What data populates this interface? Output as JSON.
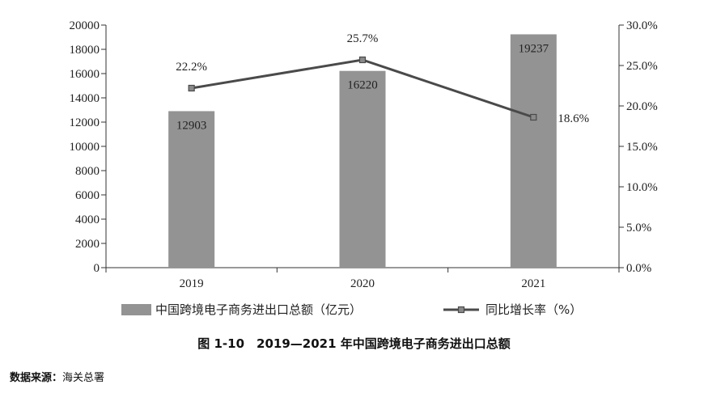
{
  "chart_data": {
    "type": "bar+line",
    "categories": [
      "2019",
      "2020",
      "2021"
    ],
    "series": [
      {
        "name": "中国跨境电子商务进出口总额（亿元）",
        "type": "bar",
        "axis": "left",
        "values": [
          12903,
          16220,
          19237
        ],
        "labels": [
          "12903",
          "16220",
          "19237"
        ]
      },
      {
        "name": "同比增长率（%）",
        "type": "line",
        "axis": "right",
        "values": [
          22.2,
          25.7,
          18.6
        ],
        "labels": [
          "22.2%",
          "25.7%",
          "18.6%"
        ]
      }
    ],
    "y_left": {
      "range": [
        0,
        20000
      ],
      "ticks": [
        0,
        2000,
        4000,
        6000,
        8000,
        10000,
        12000,
        14000,
        16000,
        18000,
        20000
      ],
      "tick_labels": [
        "0",
        "2000",
        "4000",
        "6000",
        "8000",
        "10000",
        "12000",
        "14000",
        "16000",
        "18000",
        "20000"
      ]
    },
    "y_right": {
      "range": [
        0,
        30
      ],
      "ticks": [
        0,
        5,
        10,
        15,
        20,
        25,
        30
      ],
      "tick_labels": [
        "0.0%",
        "5.0%",
        "10.0%",
        "15.0%",
        "20.0%",
        "25.0%",
        "30.0%"
      ]
    },
    "grid": false,
    "legend_position": "bottom",
    "colors": {
      "bar": "#939393",
      "line": "#4a4a4a",
      "axis": "#333333"
    }
  },
  "caption": "图 1-10　2019—2021 年中国跨境电子商务进出口总额",
  "source": {
    "label": "数据来源：",
    "value": "海关总署"
  }
}
